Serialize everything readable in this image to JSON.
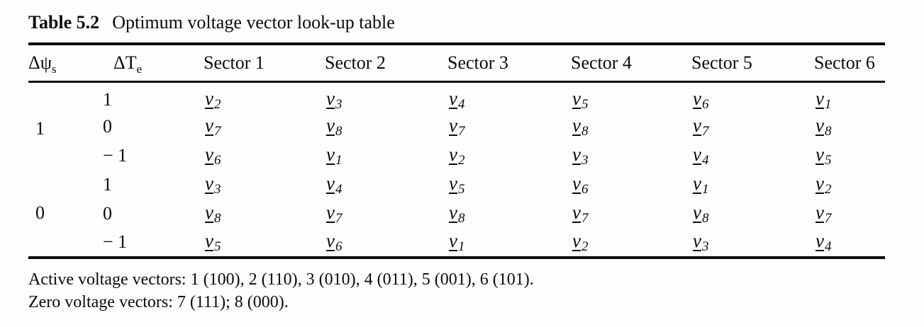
{
  "page": {
    "title_label": "Table 5.2",
    "title_text": "Optimum voltage vector look-up table"
  },
  "table": {
    "flux_header": {
      "base": "Δψ",
      "subscript": "s"
    },
    "torque_header": {
      "base": "ΔT",
      "subscript": "e"
    },
    "sector_headers": [
      "Sector 1",
      "Sector 2",
      "Sector 3",
      "Sector 4",
      "Sector 5",
      "Sector 6"
    ],
    "vector_symbol": "v",
    "groups": [
      {
        "flux": "1",
        "rows": [
          {
            "torque": "1",
            "vectors": [
              "2",
              "3",
              "4",
              "5",
              "6",
              "1"
            ]
          },
          {
            "torque": "0",
            "vectors": [
              "7",
              "8",
              "7",
              "8",
              "7",
              "8"
            ]
          },
          {
            "torque": "− 1",
            "vectors": [
              "6",
              "1",
              "2",
              "3",
              "4",
              "5"
            ]
          }
        ]
      },
      {
        "flux": "0",
        "rows": [
          {
            "torque": "1",
            "vectors": [
              "3",
              "4",
              "5",
              "6",
              "1",
              "2"
            ]
          },
          {
            "torque": "0",
            "vectors": [
              "8",
              "7",
              "8",
              "7",
              "8",
              "7"
            ]
          },
          {
            "torque": "− 1",
            "vectors": [
              "5",
              "6",
              "1",
              "2",
              "3",
              "4"
            ]
          }
        ]
      }
    ]
  },
  "footnotes": [
    "Active voltage vectors: 1 (100), 2 (110), 3 (010), 4 (011), 5 (001), 6 (101).",
    "Zero voltage vectors: 7 (111); 8 (000)."
  ]
}
